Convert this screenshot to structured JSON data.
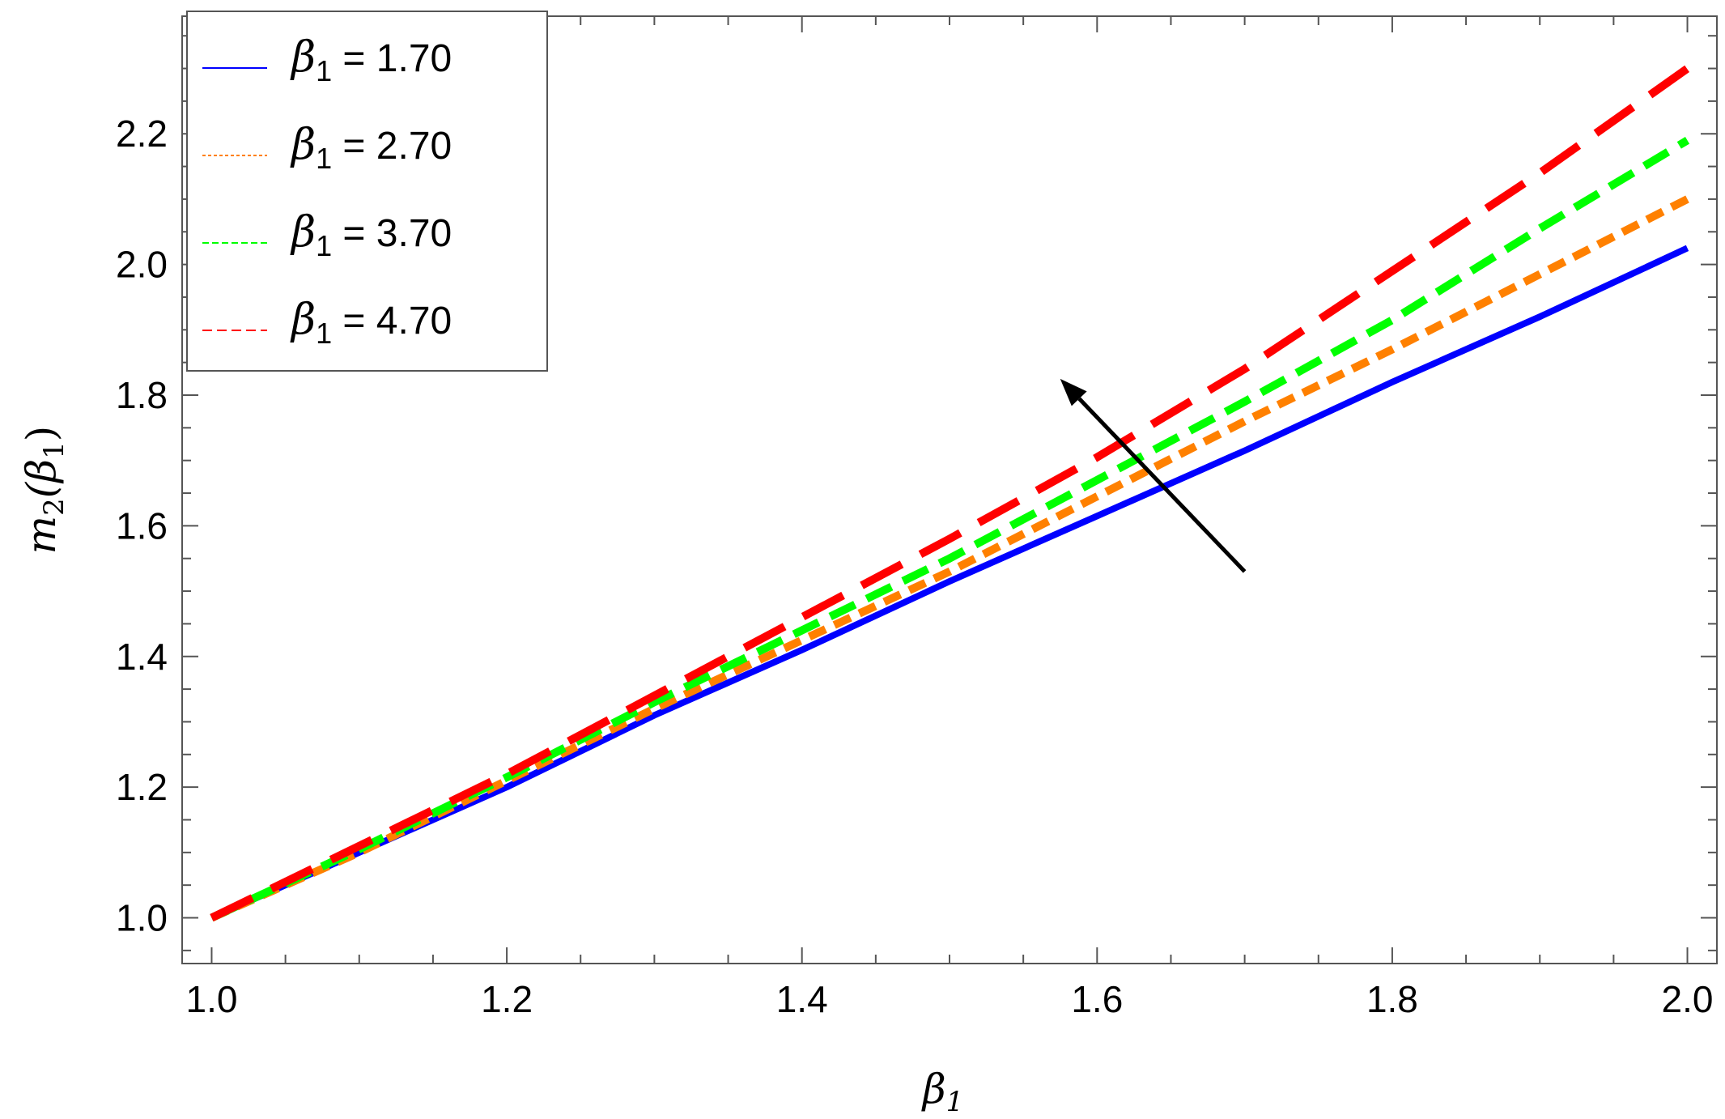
{
  "chart_data": {
    "type": "line",
    "title": "",
    "xlabel": {
      "base": "β",
      "sub": "1"
    },
    "ylabel": {
      "pre": "m",
      "pre_sub": "2",
      "mid": "(β",
      "mid_sub": "1",
      "post": ")"
    },
    "xlim": [
      0.98,
      2.02
    ],
    "ylim": [
      0.93,
      2.38
    ],
    "x_ticks": [
      1.0,
      1.2,
      1.4,
      1.6,
      1.8,
      2.0
    ],
    "x_tick_labels": [
      "1.0",
      "1.2",
      "1.4",
      "1.6",
      "1.8",
      "2.0"
    ],
    "y_ticks": [
      1.0,
      1.2,
      1.4,
      1.6,
      1.8,
      2.0,
      2.2
    ],
    "y_tick_labels": [
      "1.0",
      "1.2",
      "1.4",
      "1.6",
      "1.8",
      "2.0",
      "2.2"
    ],
    "grid": false,
    "legend": {
      "placement": "top-left",
      "entries": [
        {
          "sym": "β",
          "sub": "1",
          "text": " = 1.70"
        },
        {
          "sym": "β",
          "sub": "1",
          "text": " = 2.70"
        },
        {
          "sym": "β",
          "sub": "1",
          "text": " = 3.70"
        },
        {
          "sym": "β",
          "sub": "1",
          "text": " = 4.70"
        }
      ]
    },
    "x": [
      1.0,
      1.1,
      1.2,
      1.3,
      1.4,
      1.5,
      1.6,
      1.7,
      1.8,
      1.9,
      2.0
    ],
    "series": [
      {
        "color": "#0000ff",
        "dash": "solid",
        "values": [
          1.0,
          1.1,
          1.2,
          1.31,
          1.41,
          1.515,
          1.615,
          1.715,
          1.82,
          1.92,
          2.025
        ]
      },
      {
        "color": "#ff8000",
        "dash": "short",
        "values": [
          1.0,
          1.1,
          1.21,
          1.32,
          1.425,
          1.53,
          1.645,
          1.76,
          1.87,
          1.985,
          2.1
        ]
      },
      {
        "color": "#00ff00",
        "dash": "medium",
        "values": [
          1.0,
          1.105,
          1.215,
          1.33,
          1.44,
          1.55,
          1.67,
          1.79,
          1.915,
          2.055,
          2.19
        ]
      },
      {
        "color": "#ff0000",
        "dash": "long",
        "values": [
          1.0,
          1.11,
          1.22,
          1.34,
          1.46,
          1.58,
          1.705,
          1.84,
          1.99,
          2.14,
          2.3
        ]
      }
    ],
    "annotation_arrow": {
      "from": [
        1.7,
        1.53
      ],
      "to": [
        1.575,
        1.825
      ],
      "color": "#000000"
    }
  }
}
